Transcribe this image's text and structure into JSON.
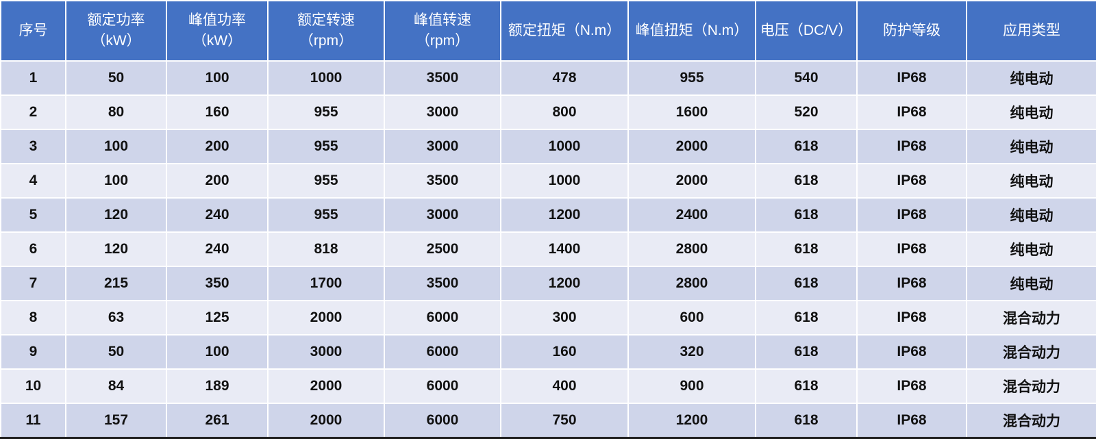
{
  "colors": {
    "header": "#4472C4",
    "row_odd": "#CFD5EA",
    "row_even": "#E9EBF5"
  },
  "headers": [
    [
      "序号"
    ],
    [
      "额定功率",
      "（kW）"
    ],
    [
      "峰值功率",
      "（kW）"
    ],
    [
      "额定转速",
      "（rpm）"
    ],
    [
      "峰值转速",
      "（rpm）"
    ],
    [
      "额定扭矩（N.m）"
    ],
    [
      "峰值扭矩（N.m）"
    ],
    [
      "电压（DC/V）"
    ],
    [
      "防护等级"
    ],
    [
      "应用类型"
    ]
  ],
  "rows": [
    [
      "1",
      "50",
      "100",
      "1000",
      "3500",
      "478",
      "955",
      "540",
      "IP68",
      "纯电动"
    ],
    [
      "2",
      "80",
      "160",
      "955",
      "3000",
      "800",
      "1600",
      "520",
      "IP68",
      "纯电动"
    ],
    [
      "3",
      "100",
      "200",
      "955",
      "3000",
      "1000",
      "2000",
      "618",
      "IP68",
      "纯电动"
    ],
    [
      "4",
      "100",
      "200",
      "955",
      "3500",
      "1000",
      "2000",
      "618",
      "IP68",
      "纯电动"
    ],
    [
      "5",
      "120",
      "240",
      "955",
      "3000",
      "1200",
      "2400",
      "618",
      "IP68",
      "纯电动"
    ],
    [
      "6",
      "120",
      "240",
      "818",
      "2500",
      "1400",
      "2800",
      "618",
      "IP68",
      "纯电动"
    ],
    [
      "7",
      "215",
      "350",
      "1700",
      "3500",
      "1200",
      "2800",
      "618",
      "IP68",
      "纯电动"
    ],
    [
      "8",
      "63",
      "125",
      "2000",
      "6000",
      "300",
      "600",
      "618",
      "IP68",
      "混合动力"
    ],
    [
      "9",
      "50",
      "100",
      "3000",
      "6000",
      "160",
      "320",
      "618",
      "IP68",
      "混合动力"
    ],
    [
      "10",
      "84",
      "189",
      "2000",
      "6000",
      "400",
      "900",
      "618",
      "IP68",
      "混合动力"
    ],
    [
      "11",
      "157",
      "261",
      "2000",
      "6000",
      "750",
      "1200",
      "618",
      "IP68",
      "混合动力"
    ]
  ]
}
